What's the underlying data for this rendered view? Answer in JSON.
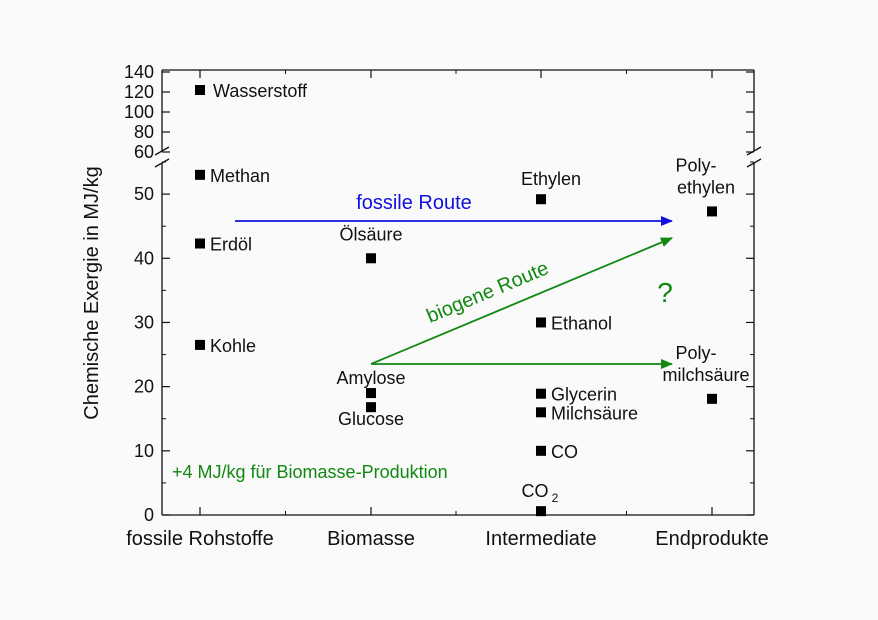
{
  "chart_data": {
    "type": "scatter",
    "ylabel": "Chemische Exergie in MJ/kg",
    "categories": [
      "fossile Rohstoffe",
      "Biomasse",
      "Intermediate",
      "Endprodukte"
    ],
    "y_axis": {
      "lower_range": [
        0,
        55
      ],
      "lower_ticks": [
        0,
        10,
        20,
        30,
        40,
        50
      ],
      "upper_range": [
        60,
        140
      ],
      "upper_ticks": [
        60,
        80,
        100,
        120,
        140
      ],
      "broken": true
    },
    "points": [
      {
        "category": "fossile Rohstoffe",
        "label": "Wasserstoff",
        "y": 122
      },
      {
        "category": "fossile Rohstoffe",
        "label": "Methan",
        "y": 53
      },
      {
        "category": "fossile Rohstoffe",
        "label": "Erdöl",
        "y": 42.3
      },
      {
        "category": "fossile Rohstoffe",
        "label": "Kohle",
        "y": 26.5
      },
      {
        "category": "Biomasse",
        "label": "Ölsäure",
        "y": 40
      },
      {
        "category": "Biomasse",
        "label": "Amylose",
        "y": 19
      },
      {
        "category": "Biomasse",
        "label": "Glucose",
        "y": 16.8
      },
      {
        "category": "Intermediate",
        "label": "Ethylen",
        "y": 49.2
      },
      {
        "category": "Intermediate",
        "label": "Ethanol",
        "y": 30
      },
      {
        "category": "Intermediate",
        "label": "Glycerin",
        "y": 18.9
      },
      {
        "category": "Intermediate",
        "label": "Milchsäure",
        "y": 16
      },
      {
        "category": "Intermediate",
        "label": "CO",
        "y": 10
      },
      {
        "category": "Intermediate",
        "label": "CO",
        "label_sub": "2",
        "y": 0.6
      },
      {
        "category": "Endprodukte",
        "label": "Poly-",
        "label2": "ethylen",
        "y": 47.3
      },
      {
        "category": "Endprodukte",
        "label": "Poly-",
        "label2": "milchsäure",
        "y": 18.1
      }
    ],
    "annotations": {
      "fossil_route": {
        "text": "fossile Route",
        "color": "#1010e0"
      },
      "biogenic_route": {
        "text": "biogene Route",
        "color": "#118811"
      },
      "question_mark": {
        "text": "?",
        "color": "#118811"
      },
      "biomass_note": {
        "text": "+4 MJ/kg für Biomasse-Produktion",
        "color": "#118811"
      }
    }
  }
}
